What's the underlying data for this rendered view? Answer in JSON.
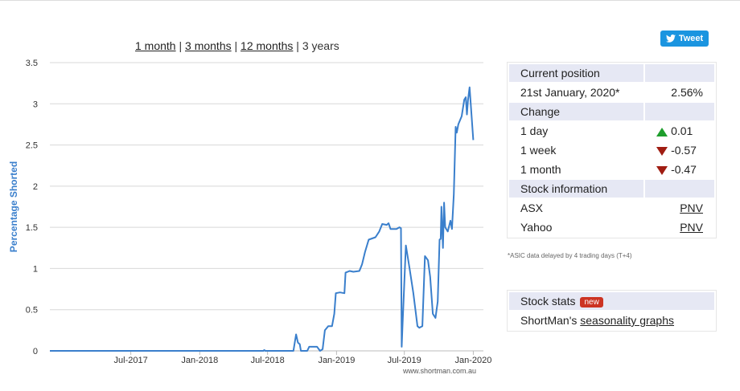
{
  "range_links": {
    "one_month": "1 month",
    "three_months": "3 months",
    "twelve_months": "12 months",
    "three_years": "3 years",
    "separator": "|"
  },
  "tweet": {
    "label": "Tweet"
  },
  "chart_data": {
    "type": "line",
    "ylabel": "Percentage Shorted",
    "xlabel": "",
    "ylim": [
      0,
      3.5
    ],
    "xlim": [
      "2016-11-27",
      "2020-01-28"
    ],
    "grid": true,
    "y_ticks": [
      0,
      0.5,
      1,
      1.5,
      2,
      2.5,
      3,
      3.5
    ],
    "y_tick_labels": [
      "0",
      "0.5",
      "1",
      "1.5",
      "2",
      "2.5",
      "3",
      "3.5"
    ],
    "x_ticks": [
      "2017-07-01",
      "2018-01-01",
      "2018-07-01",
      "2019-01-01",
      "2019-07-01",
      "2020-01-01"
    ],
    "x_tick_labels": [
      "Jul-2017",
      "Jan-2018",
      "Jul-2018",
      "Jan-2019",
      "Jul-2019",
      "Jan-2020"
    ],
    "credit": "www.shortman.com.au",
    "line_color": "#3a7fcc",
    "series": [
      {
        "values": [
          [
            "2016-11-27",
            0
          ],
          [
            "2018-06-20",
            0
          ],
          [
            "2018-06-22",
            0.01
          ],
          [
            "2018-06-25",
            0
          ],
          [
            "2018-09-08",
            0
          ],
          [
            "2018-09-15",
            0.2
          ],
          [
            "2018-09-20",
            0.1
          ],
          [
            "2018-09-25",
            0.08
          ],
          [
            "2018-09-28",
            0
          ],
          [
            "2018-10-15",
            0
          ],
          [
            "2018-10-20",
            0.05
          ],
          [
            "2018-11-10",
            0.05
          ],
          [
            "2018-11-18",
            0
          ],
          [
            "2018-11-25",
            0.02
          ],
          [
            "2018-12-01",
            0.25
          ],
          [
            "2018-12-10",
            0.3
          ],
          [
            "2018-12-20",
            0.3
          ],
          [
            "2018-12-26",
            0.45
          ],
          [
            "2018-12-30",
            0.7
          ],
          [
            "2019-01-10",
            0.71
          ],
          [
            "2019-01-22",
            0.7
          ],
          [
            "2019-01-25",
            0.95
          ],
          [
            "2019-02-05",
            0.97
          ],
          [
            "2019-02-15",
            0.96
          ],
          [
            "2019-03-03",
            0.97
          ],
          [
            "2019-03-10",
            1.05
          ],
          [
            "2019-03-18",
            1.2
          ],
          [
            "2019-03-28",
            1.35
          ],
          [
            "2019-04-15",
            1.38
          ],
          [
            "2019-04-25",
            1.45
          ],
          [
            "2019-05-03",
            1.54
          ],
          [
            "2019-05-15",
            1.53
          ],
          [
            "2019-05-20",
            1.55
          ],
          [
            "2019-05-25",
            1.48
          ],
          [
            "2019-06-10",
            1.48
          ],
          [
            "2019-06-18",
            1.5
          ],
          [
            "2019-06-22",
            1.49
          ],
          [
            "2019-06-24",
            0.05
          ],
          [
            "2019-06-26",
            0.3
          ],
          [
            "2019-07-05",
            1.28
          ],
          [
            "2019-07-15",
            1.0
          ],
          [
            "2019-07-25",
            0.7
          ],
          [
            "2019-08-05",
            0.3
          ],
          [
            "2019-08-10",
            0.28
          ],
          [
            "2019-08-18",
            0.3
          ],
          [
            "2019-08-25",
            1.15
          ],
          [
            "2019-09-02",
            1.1
          ],
          [
            "2019-09-08",
            0.9
          ],
          [
            "2019-09-15",
            0.45
          ],
          [
            "2019-09-22",
            0.4
          ],
          [
            "2019-09-28",
            0.6
          ],
          [
            "2019-10-03",
            1.35
          ],
          [
            "2019-10-06",
            1.36
          ],
          [
            "2019-10-08",
            1.75
          ],
          [
            "2019-10-12",
            1.25
          ],
          [
            "2019-10-15",
            1.8
          ],
          [
            "2019-10-18",
            1.5
          ],
          [
            "2019-10-25",
            1.45
          ],
          [
            "2019-11-01",
            1.58
          ],
          [
            "2019-11-05",
            1.48
          ],
          [
            "2019-11-10",
            1.9
          ],
          [
            "2019-11-13",
            2.4
          ],
          [
            "2019-11-15",
            2.72
          ],
          [
            "2019-11-18",
            2.65
          ],
          [
            "2019-11-22",
            2.75
          ],
          [
            "2019-12-01",
            2.85
          ],
          [
            "2019-12-08",
            3.05
          ],
          [
            "2019-12-12",
            3.08
          ],
          [
            "2019-12-15",
            2.87
          ],
          [
            "2019-12-18",
            3.05
          ],
          [
            "2019-12-22",
            3.2
          ],
          [
            "2020-01-01",
            2.56
          ]
        ]
      }
    ]
  },
  "position_panel": {
    "current_header": "Current position",
    "date": "21st January, 2020*",
    "value": "2.56%",
    "change_header": "Change",
    "changes": [
      {
        "label": "1 day",
        "value": "0.01",
        "dir": "up"
      },
      {
        "label": "1 week",
        "value": "-0.57",
        "dir": "down"
      },
      {
        "label": "1 month",
        "value": "-0.47",
        "dir": "down"
      }
    ],
    "stock_header": "Stock information",
    "asx_label": "ASX",
    "asx_value": "PNV",
    "yahoo_label": "Yahoo",
    "yahoo_value": "PNV",
    "note": "*ASIC data delayed by 4 trading days (T+4)"
  },
  "stats_panel": {
    "header": "Stock stats",
    "badge": "new",
    "text_prefix": "ShortMan's ",
    "link": "seasonality graphs"
  },
  "colors": {
    "up": "#1e9e2c",
    "down": "#a01d12",
    "header_bg": "#e6e8f4",
    "tweet": "#1b95e0"
  }
}
